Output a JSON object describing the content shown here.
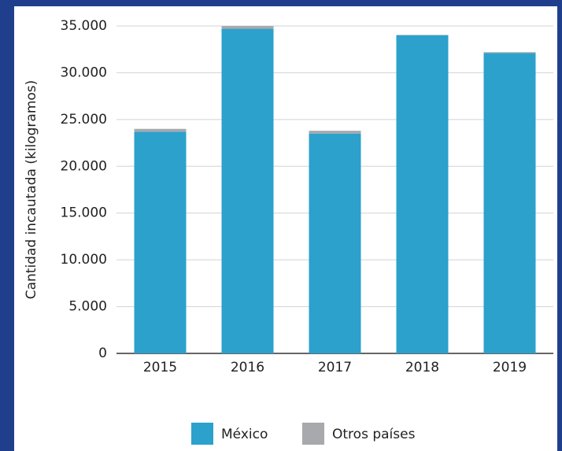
{
  "chart_data": {
    "type": "stacked_bar",
    "y_label": "Cantidad incautada (kilogramos)",
    "categories": [
      "2015",
      "2016",
      "2017",
      "2018",
      "2019"
    ],
    "series": [
      {
        "name": "México",
        "color": "#2ba1cc",
        "values": [
          23700,
          34700,
          23500,
          34000,
          32100
        ]
      },
      {
        "name": "Otros países",
        "color": "#a7a9ac",
        "values": [
          300,
          300,
          300,
          50,
          100
        ]
      }
    ],
    "ylim": [
      0,
      35000
    ],
    "yticks": [
      0,
      {
        "value": 5000,
        "label": "5.000"
      },
      {
        "value": 10000,
        "label": "10.000"
      },
      {
        "value": 15000,
        "label": "15.000"
      },
      {
        "value": 20000,
        "label": "20.000"
      },
      {
        "value": 25000,
        "label": "25.000"
      },
      {
        "value": 30000,
        "label": "30.000"
      },
      {
        "value": 35000,
        "label": "35.000"
      }
    ],
    "grid": true,
    "legend": "bottom"
  }
}
